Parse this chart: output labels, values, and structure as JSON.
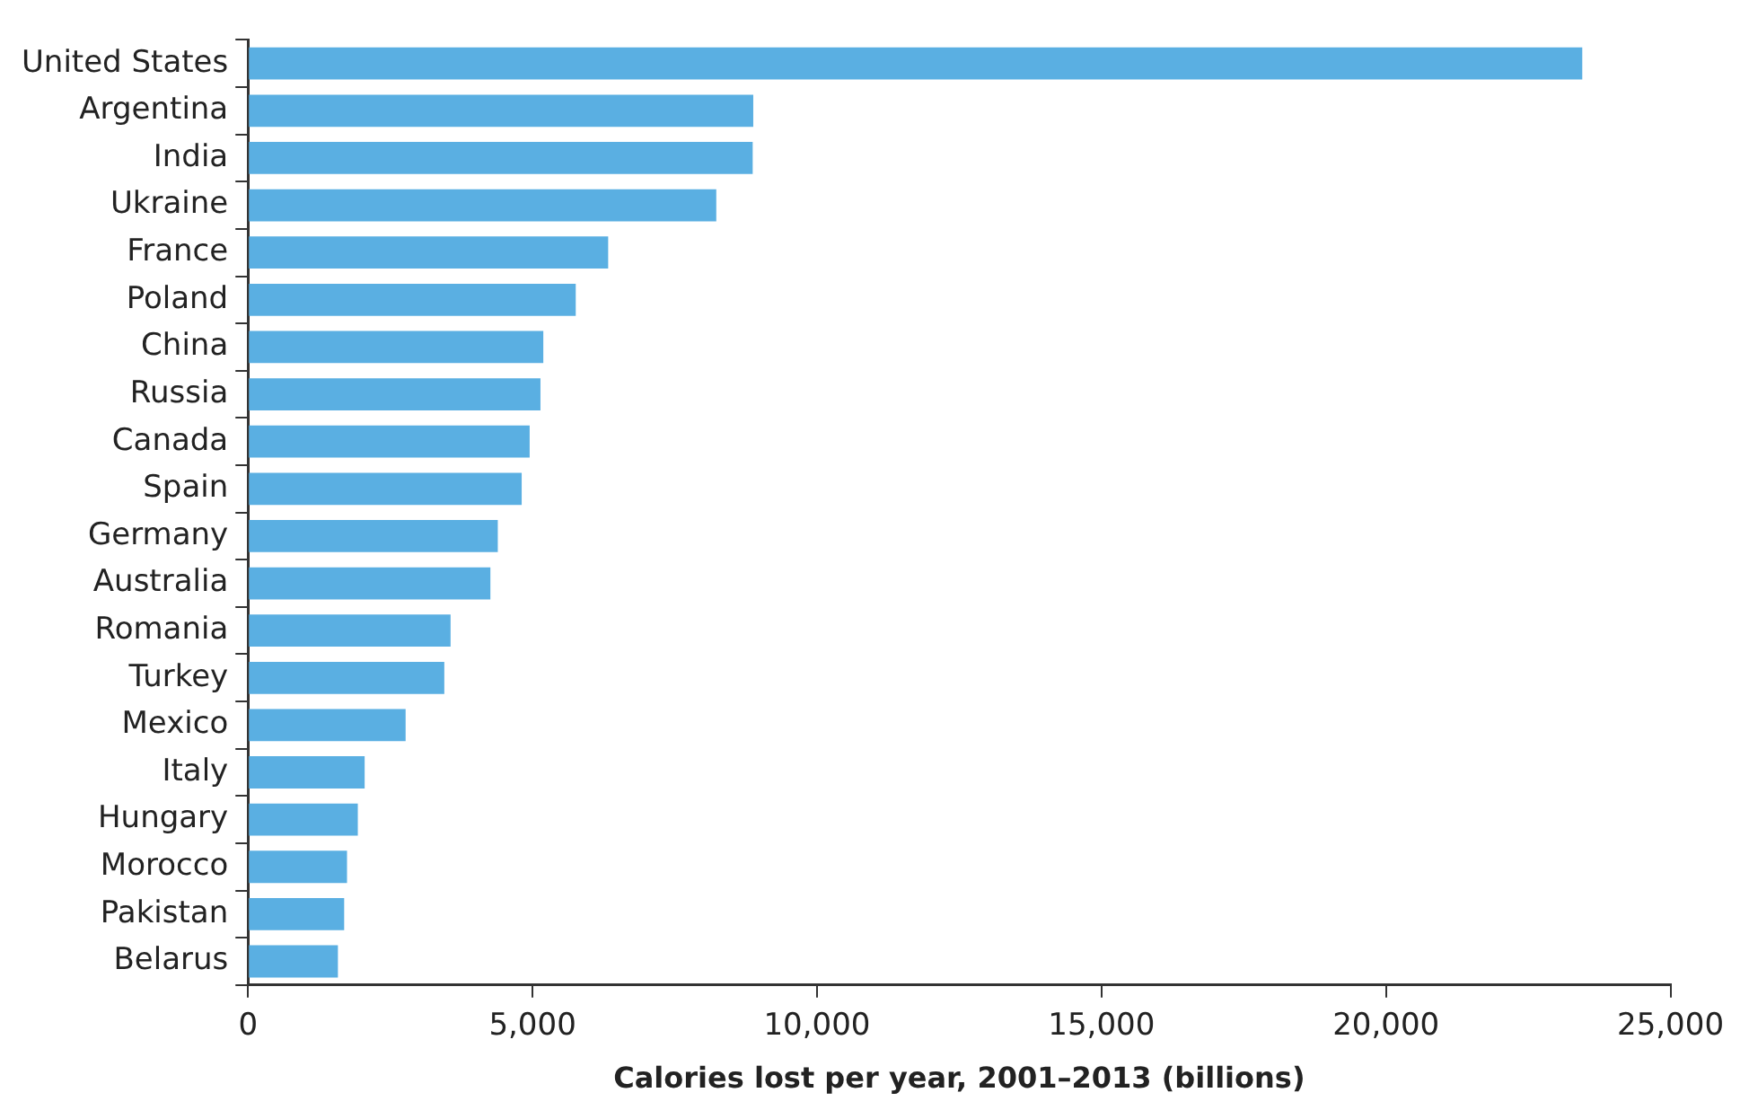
{
  "chart_data": {
    "type": "bar",
    "orientation": "horizontal",
    "xlabel": "Calories lost per year, 2001–2013 (billions)",
    "categories": [
      "United States",
      "Argentina",
      "India",
      "Ukraine",
      "France",
      "Poland",
      "China",
      "Russia",
      "Canada",
      "Spain",
      "Germany",
      "Australia",
      "Romania",
      "Turkey",
      "Mexico",
      "Italy",
      "Hungary",
      "Morocco",
      "Pakistan",
      "Belarus"
    ],
    "values": [
      23450,
      8880,
      8870,
      8230,
      6330,
      5760,
      5190,
      5140,
      4950,
      4810,
      4390,
      4260,
      3560,
      3450,
      2770,
      2050,
      1930,
      1740,
      1690,
      1580
    ],
    "color": "#5aafe2",
    "xlim": [
      0,
      25000
    ],
    "xticks": [
      0,
      {
        "value": 5000,
        "label": "5,000"
      },
      {
        "value": 10000,
        "label": "10,000"
      },
      {
        "value": 15000,
        "label": "15,000"
      },
      {
        "value": 20000,
        "label": "20,000"
      },
      {
        "value": 25000,
        "label": "25,000"
      }
    ],
    "grid": false,
    "legend": false
  }
}
